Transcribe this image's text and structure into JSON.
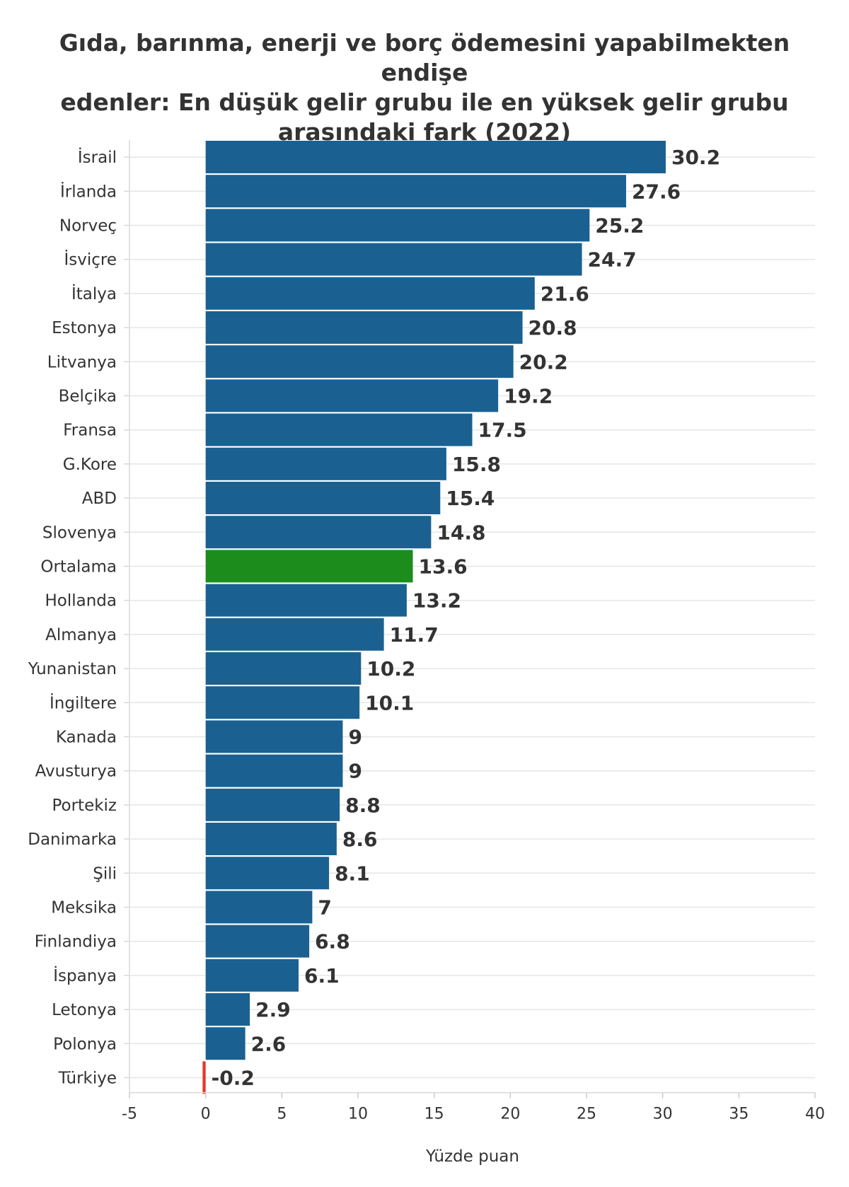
{
  "chart_data": {
    "type": "bar",
    "orientation": "horizontal",
    "title_lines": [
      "Gıda, barınma, enerji ve borç ödemesini yapabilmekten endişe",
      "edenler: En düşük gelir grubu ile en yüksek gelir grubu",
      "arasındaki fark (2022)"
    ],
    "xlabel": "Yüzde puan",
    "ylabel": "",
    "xlim": [
      -5,
      40
    ],
    "xticks": [
      "-5",
      "0",
      "5",
      "10",
      "15",
      "20",
      "25",
      "30",
      "35",
      "40"
    ],
    "grid": "horizontal",
    "categories": [
      "İsrail",
      "İrlanda",
      "Norveç",
      "İsviçre",
      "İtalya",
      "Estonya",
      "Litvanya",
      "Belçika",
      "Fransa",
      "G.Kore",
      "ABD",
      "Slovenya",
      "Ortalama",
      "Hollanda",
      "Almanya",
      "Yunanistan",
      "İngiltere",
      "Kanada",
      "Avusturya",
      "Portekiz",
      "Danimarka",
      "Şili",
      "Meksika",
      "Finlandiya",
      "İspanya",
      "Letonya",
      "Polonya",
      "Türkiye"
    ],
    "values": [
      30.2,
      27.6,
      25.2,
      24.7,
      21.6,
      20.8,
      20.2,
      19.2,
      17.5,
      15.8,
      15.4,
      14.8,
      13.6,
      13.2,
      11.7,
      10.2,
      10.1,
      9,
      9,
      8.8,
      8.6,
      8.1,
      7,
      6.8,
      6.1,
      2.9,
      2.6,
      -0.2
    ],
    "value_labels": [
      "30.2",
      "27.6",
      "25.2",
      "24.7",
      "21.6",
      "20.8",
      "20.2",
      "19.2",
      "17.5",
      "15.8",
      "15.4",
      "14.8",
      "13.6",
      "13.2",
      "11.7",
      "10.2",
      "10.1",
      "9",
      "9",
      "8.8",
      "8.6",
      "8.1",
      "7",
      "6.8",
      "6.1",
      "2.9",
      "2.6",
      "-0.2"
    ],
    "highlights": {
      "Ortalama": "#1c8c1c",
      "Türkiye": "#e8342c"
    },
    "bar_color": "#1a6191"
  }
}
